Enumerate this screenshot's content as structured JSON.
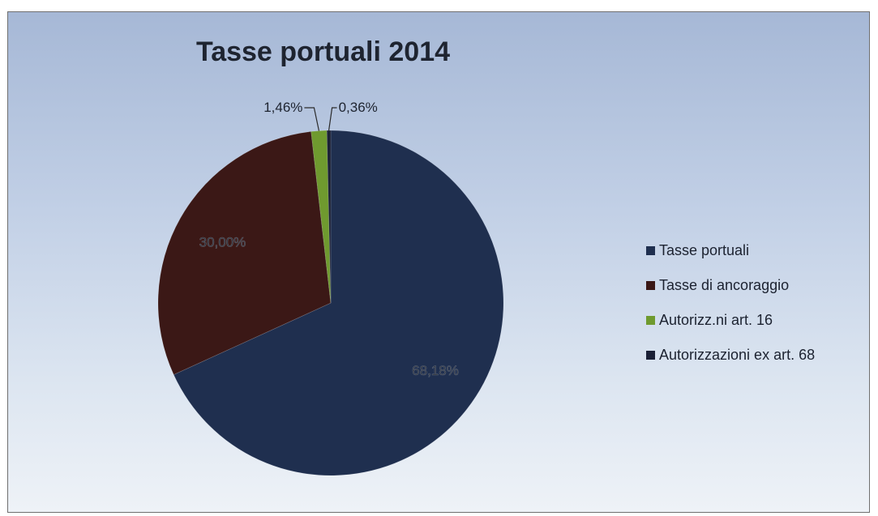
{
  "chart_data": {
    "type": "pie",
    "title": "Tasse portuali 2014",
    "slices": [
      {
        "label": "Tasse portuali",
        "value": 68.18,
        "data_label": "68,18%",
        "color": "#1f2f4f"
      },
      {
        "label": "Tasse di ancoraggio",
        "value": 30.0,
        "data_label": "30,00%",
        "color": "#3b1816"
      },
      {
        "label": "Autorizz.ni art. 16",
        "value": 1.46,
        "data_label": "1,46%",
        "color": "#6f9a2f"
      },
      {
        "label": "Autorizzazioni ex art. 68",
        "value": 0.36,
        "data_label": "0,36%",
        "color": "#1b2036"
      }
    ],
    "legend_position": "right"
  }
}
